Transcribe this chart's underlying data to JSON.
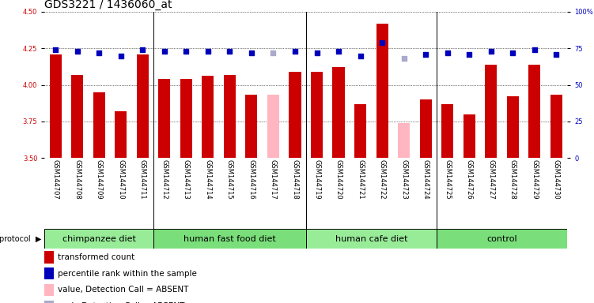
{
  "title": "GDS3221 / 1436060_at",
  "samples": [
    "GSM144707",
    "GSM144708",
    "GSM144709",
    "GSM144710",
    "GSM144711",
    "GSM144712",
    "GSM144713",
    "GSM144714",
    "GSM144715",
    "GSM144716",
    "GSM144717",
    "GSM144718",
    "GSM144719",
    "GSM144720",
    "GSM144721",
    "GSM144722",
    "GSM144723",
    "GSM144724",
    "GSM144725",
    "GSM144726",
    "GSM144727",
    "GSM144728",
    "GSM144729",
    "GSM144730"
  ],
  "bar_values": [
    4.21,
    4.07,
    3.95,
    3.82,
    4.21,
    4.04,
    4.04,
    4.06,
    4.07,
    3.93,
    3.93,
    4.09,
    4.09,
    4.12,
    3.87,
    4.42,
    3.74,
    3.9,
    3.87,
    3.8,
    4.14,
    3.92,
    4.14,
    3.93
  ],
  "bar_absent": [
    false,
    false,
    false,
    false,
    false,
    false,
    false,
    false,
    false,
    false,
    true,
    false,
    false,
    false,
    false,
    false,
    true,
    false,
    false,
    false,
    false,
    false,
    false,
    false
  ],
  "percentile_values": [
    74,
    73,
    72,
    70,
    74,
    73,
    73,
    73,
    73,
    72,
    72,
    73,
    72,
    73,
    70,
    79,
    68,
    71,
    72,
    71,
    73,
    72,
    74,
    71
  ],
  "percentile_absent": [
    false,
    false,
    false,
    false,
    false,
    false,
    false,
    false,
    false,
    false,
    true,
    false,
    false,
    false,
    false,
    false,
    true,
    false,
    false,
    false,
    false,
    false,
    false,
    false
  ],
  "groups": [
    {
      "label": "chimpanzee diet",
      "start": 0,
      "end": 5
    },
    {
      "label": "human fast food diet",
      "start": 5,
      "end": 12
    },
    {
      "label": "human cafe diet",
      "start": 12,
      "end": 18
    },
    {
      "label": "control",
      "start": 18,
      "end": 24
    }
  ],
  "group_boundaries": [
    4.5,
    11.5,
    17.5
  ],
  "ylim_left": [
    3.5,
    4.5
  ],
  "ylim_right": [
    0,
    100
  ],
  "yticks_left": [
    3.5,
    3.75,
    4.0,
    4.25,
    4.5
  ],
  "yticks_right": [
    0,
    25,
    50,
    75,
    100
  ],
  "bar_color": "#CC0000",
  "bar_absent_color": "#FFB6C1",
  "dot_color": "#0000BB",
  "dot_absent_color": "#AAAACC",
  "bg_color": "#FFFFFF",
  "sample_bg_color": "#D3D3D3",
  "group_colors": [
    "#98EC98",
    "#7ADF7A",
    "#98EC98",
    "#7ADF7A"
  ],
  "bar_width": 0.55,
  "dot_size": 18,
  "title_fontsize": 10,
  "tick_fontsize": 6,
  "sample_fontsize": 6,
  "legend_fontsize": 7.5,
  "group_fontsize": 8
}
